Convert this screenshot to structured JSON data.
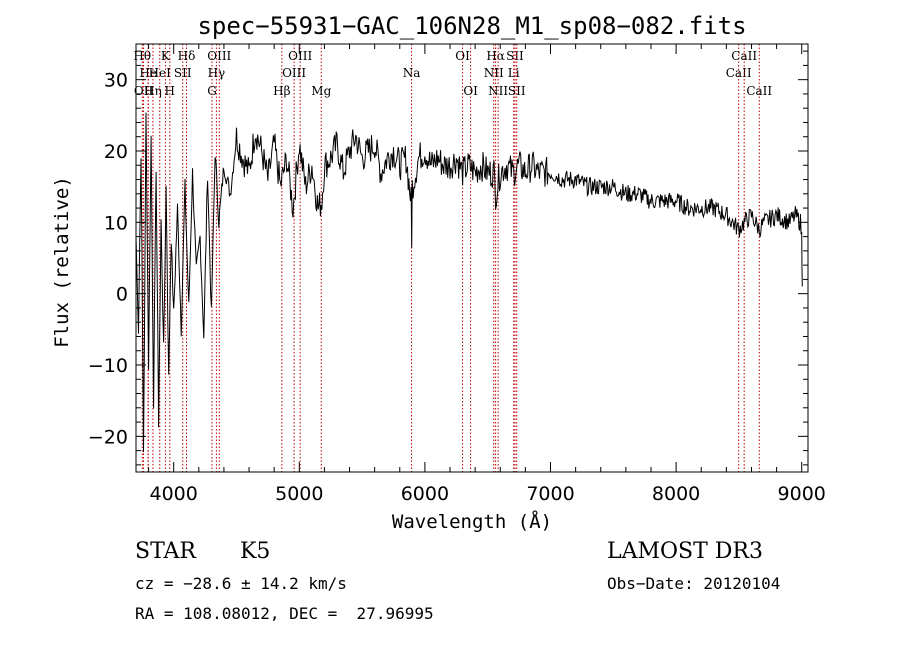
{
  "chart_data": {
    "type": "line",
    "title": "spec−55931−GAC_106N28_M1_sp08−082.fits",
    "xlabel": "Wavelength (Å)",
    "ylabel": "Flux (relative)",
    "xlim": [
      3700,
      9050
    ],
    "ylim": [
      -25,
      35
    ],
    "x_ticks": [
      4000,
      5000,
      6000,
      7000,
      8000,
      9000
    ],
    "y_ticks": [
      -20,
      -10,
      0,
      10,
      20,
      30
    ],
    "y_tick_labels": [
      "−20",
      "−10",
      "0",
      "10",
      "20",
      "30"
    ],
    "series": [
      {
        "name": "flux",
        "x": [
          3700,
          3720,
          3740,
          3760,
          3780,
          3800,
          3820,
          3840,
          3860,
          3880,
          3900,
          3920,
          3940,
          3960,
          3980,
          4000,
          4030,
          4060,
          4090,
          4120,
          4150,
          4180,
          4210,
          4240,
          4270,
          4300,
          4330,
          4360,
          4400,
          4450,
          4500,
          4550,
          4600,
          4650,
          4700,
          4750,
          4800,
          4850,
          4900,
          4950,
          5000,
          5050,
          5100,
          5150,
          5180,
          5200,
          5250,
          5300,
          5350,
          5400,
          5450,
          5500,
          5550,
          5600,
          5650,
          5700,
          5750,
          5800,
          5850,
          5890,
          5895,
          5900,
          5950,
          6000,
          6050,
          6100,
          6150,
          6200,
          6250,
          6300,
          6350,
          6400,
          6450,
          6500,
          6550,
          6563,
          6600,
          6650,
          6700,
          6750,
          6800,
          6850,
          6900,
          6950,
          7000,
          7100,
          7200,
          7300,
          7400,
          7500,
          7600,
          7700,
          7800,
          7900,
          8000,
          8100,
          8200,
          8300,
          8400,
          8498,
          8542,
          8600,
          8662,
          8700,
          8800,
          8900,
          8950,
          8990,
          9000,
          9005
        ],
        "y": [
          8,
          -5,
          20,
          -22,
          25,
          -10,
          22,
          -15,
          18,
          -18,
          10,
          -8,
          15,
          -12,
          8,
          -3,
          12,
          -5,
          15,
          -2,
          17,
          3,
          8,
          -6,
          17,
          -3,
          20,
          10,
          18,
          14,
          22,
          19,
          17,
          23,
          20,
          16,
          21,
          15,
          19,
          12,
          21,
          15,
          18,
          12,
          13,
          18,
          19,
          21,
          17,
          20,
          22,
          19,
          20,
          21,
          17,
          19,
          20,
          18,
          19,
          13,
          8,
          15,
          19,
          20,
          18,
          19,
          18,
          18,
          19,
          17,
          18,
          17,
          18,
          17,
          17,
          14,
          17,
          18,
          17,
          18,
          17,
          18,
          17,
          17,
          17,
          16,
          16,
          15,
          15,
          15,
          14,
          14,
          13,
          13,
          13,
          12,
          12,
          12,
          11,
          9,
          10,
          11,
          9,
          10,
          11,
          10,
          11,
          10,
          8,
          1
        ]
      }
    ],
    "lines": [
      {
        "x": 3750,
        "label": "Hθ",
        "row": 0
      },
      {
        "x": 3760,
        "label": "OII",
        "row": 2
      },
      {
        "x": 3797,
        "label": "He",
        "row": 1
      },
      {
        "x": 3798,
        "label": "",
        "row": 0
      },
      {
        "x": 3835,
        "label": "Hη",
        "row": 2
      },
      {
        "x": 3889,
        "label": "HeI",
        "row": 1
      },
      {
        "x": 3934,
        "label": "K",
        "row": 0
      },
      {
        "x": 3969,
        "label": "H",
        "row": 2
      },
      {
        "x": 4072,
        "label": "SII",
        "row": 1
      },
      {
        "x": 4102,
        "label": "Hδ",
        "row": 0
      },
      {
        "x": 4305,
        "label": "G",
        "row": 2
      },
      {
        "x": 4340,
        "label": "Hγ",
        "row": 1
      },
      {
        "x": 4363,
        "label": "OIII",
        "row": 0
      },
      {
        "x": 4861,
        "label": "Hβ",
        "row": 2
      },
      {
        "x": 4959,
        "label": "OIII",
        "row": 1
      },
      {
        "x": 5007,
        "label": "OIII",
        "row": 0
      },
      {
        "x": 5175,
        "label": "Mg",
        "row": 2
      },
      {
        "x": 5894,
        "label": "Na",
        "row": 1
      },
      {
        "x": 6300,
        "label": "OI",
        "row": 0
      },
      {
        "x": 6364,
        "label": "OI",
        "row": 2
      },
      {
        "x": 6548,
        "label": "NII",
        "row": 1
      },
      {
        "x": 6563,
        "label": "Hα",
        "row": 0
      },
      {
        "x": 6583,
        "label": "NII",
        "row": 2
      },
      {
        "x": 6707,
        "label": "Li",
        "row": 1
      },
      {
        "x": 6717,
        "label": "SII",
        "row": 0
      },
      {
        "x": 6731,
        "label": "SII",
        "row": 2
      },
      {
        "x": 8498,
        "label": "CaII",
        "row": 1
      },
      {
        "x": 8542,
        "label": "CaII",
        "row": 0
      },
      {
        "x": 8662,
        "label": "CaII",
        "row": 2
      }
    ]
  },
  "info": {
    "object_class": "STAR",
    "subclass": "K5",
    "survey": "LAMOST DR3",
    "cz": "cz = −28.6 ± 14.2 km/s",
    "obs_date": "Obs−Date: 20120104",
    "coords": "RA = 108.08012, DEC =  27.96995"
  }
}
